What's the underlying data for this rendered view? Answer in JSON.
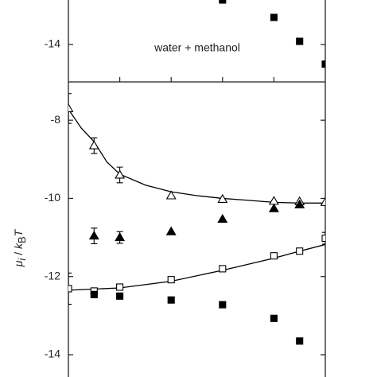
{
  "chart_data": [
    {
      "type": "scatter",
      "annotation": "water + methanol",
      "xlim": [
        0,
        1
      ],
      "xticks": [
        0.2,
        0.4,
        0.6,
        0.8
      ],
      "ylim": [
        -14.97,
        -12.85
      ],
      "yticks": [
        -14
      ],
      "series": [
        {
          "marker": "filled-square",
          "color": "#000000",
          "x": [
            0.6,
            0.8,
            0.9,
            1.0
          ],
          "values": [
            -12.85,
            -13.3,
            -13.92,
            -14.51
          ]
        }
      ]
    },
    {
      "type": "scatter",
      "y_label": [
        "μ",
        "i",
        " / ",
        "k",
        "B",
        "T"
      ],
      "xlim": [
        0,
        1
      ],
      "xticks": [
        0.2,
        0.4,
        0.6,
        0.8
      ],
      "ylim": [
        -14.57,
        -7.02
      ],
      "yticks": [
        -8,
        -10,
        -12,
        -14
      ],
      "series": [
        {
          "style": "line",
          "color": "#000000",
          "x": [
            0,
            0.05,
            0.1,
            0.15,
            0.2,
            0.3,
            0.4,
            0.5,
            0.6,
            0.7,
            0.8,
            0.9,
            1.0
          ],
          "values": [
            -7.72,
            -8.2,
            -8.55,
            -9.07,
            -9.38,
            -9.66,
            -9.83,
            -9.93,
            -10.0,
            -10.05,
            -10.1,
            -10.12,
            -10.12
          ]
        },
        {
          "style": "line",
          "color": "#000000",
          "x": [
            0,
            0.2,
            0.4,
            0.6,
            0.8,
            0.9,
            1.0
          ],
          "values": [
            -12.35,
            -12.29,
            -12.12,
            -11.84,
            -11.53,
            -11.35,
            -11.18
          ]
        },
        {
          "marker": "open-triangle",
          "color": "#000000",
          "x": [
            0,
            0.1,
            0.2,
            0.4,
            0.6,
            0.8,
            0.9,
            1.0
          ],
          "values": [
            -7.7,
            -8.65,
            -9.4,
            -9.93,
            -10.02,
            -10.07,
            -10.08,
            -10.1
          ],
          "errors": [
            0.38,
            0.2,
            0.2,
            null,
            null,
            null,
            null,
            null
          ]
        },
        {
          "marker": "filled-triangle",
          "color": "#000000",
          "x": [
            0.1,
            0.2,
            0.4,
            0.6,
            0.8,
            0.9
          ],
          "values": [
            -10.96,
            -11.0,
            -10.85,
            -10.53,
            -10.26,
            -10.16
          ],
          "errors": [
            0.2,
            0.15,
            null,
            null,
            null,
            null
          ]
        },
        {
          "marker": "open-square",
          "color": "#000000",
          "x": [
            0,
            0.1,
            0.2,
            0.4,
            0.6,
            0.8,
            0.9,
            1.0
          ],
          "values": [
            -12.31,
            -12.37,
            -12.27,
            -12.08,
            -11.8,
            -11.47,
            -11.35,
            -11.02
          ],
          "errors": [
            0.4,
            null,
            null,
            null,
            null,
            null,
            null,
            0.15
          ]
        },
        {
          "marker": "filled-square",
          "color": "#000000",
          "x": [
            0.1,
            0.2,
            0.4,
            0.6,
            0.8,
            0.9
          ],
          "values": [
            -12.46,
            -12.5,
            -12.6,
            -12.72,
            -13.07,
            -13.65
          ]
        }
      ]
    }
  ]
}
